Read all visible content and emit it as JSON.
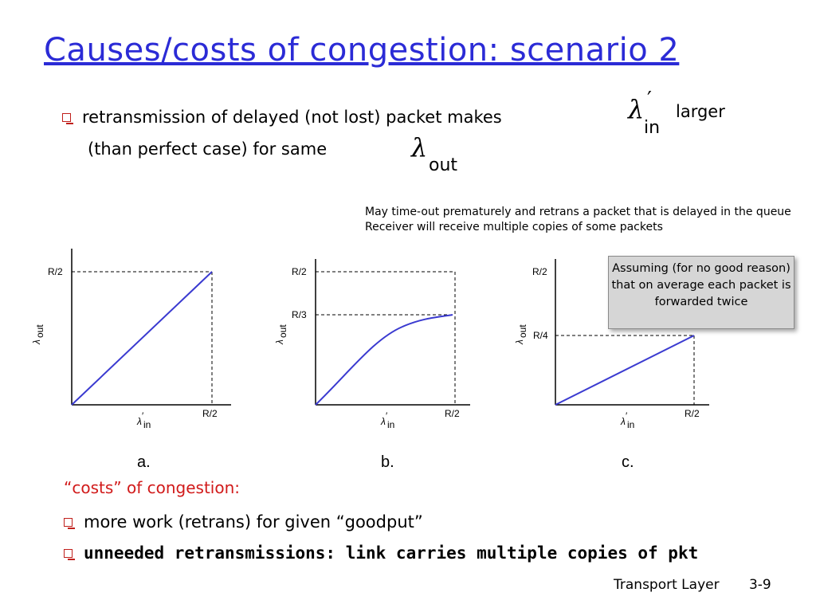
{
  "title": "Causes/costs of congestion: scenario 2",
  "bullet1": {
    "part1": "retransmission of delayed (not lost) packet makes",
    "lambda_in_symbol": "λ",
    "prime": "′",
    "in_sub": "in",
    "part2": "larger",
    "part3": "(than perfect case) for same",
    "out_sub": "out"
  },
  "note": {
    "line1": "May time-out prematurely and retrans a packet that is delayed in the queue",
    "line2": "Receiver will receive multiple copies of some packets"
  },
  "callout": "Assuming (for no good reason) that on average each packet is forwarded twice",
  "graphs": {
    "a": {
      "panel": "a.",
      "y_top": "R/2",
      "x_right": "R/2",
      "y_axis": "λ",
      "y_sub": "out",
      "x_axis": "λ",
      "x_sub": "in"
    },
    "b": {
      "panel": "b.",
      "y_top": "R/2",
      "y_mid": "R/3",
      "x_right": "R/2",
      "y_axis": "λ",
      "y_sub": "out",
      "x_axis": "λ",
      "x_sub": "in"
    },
    "c": {
      "panel": "c.",
      "y_top": "R/2",
      "y_mid": "R/4",
      "x_right": "R/2",
      "y_axis": "λ",
      "y_sub": "out",
      "x_axis": "λ",
      "x_sub": "in"
    }
  },
  "costs_heading": "“costs” of congestion:",
  "bullet2": "more work (retrans) for given “goodput”",
  "bullet3": "unneeded retransmissions: link carries multiple copies of pkt",
  "footer": {
    "label": "Transport Layer",
    "page": "3-9"
  },
  "colors": {
    "title": "#2b2bd6",
    "curve": "#3a3ad0",
    "costs": "#d11a1a",
    "bullet": "#c0201c"
  }
}
